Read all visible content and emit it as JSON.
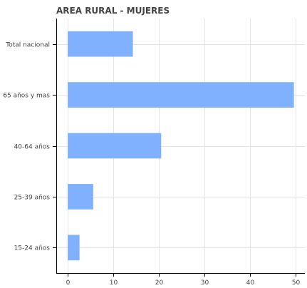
{
  "chart_data": {
    "type": "bar",
    "orientation": "horizontal",
    "title": "AREA RURAL - MUJERES",
    "xlabel": "",
    "ylabel": "",
    "categories": [
      "Total nacional",
      "65 años y mas",
      "40-64 años",
      "25-39 años",
      "15-24 años"
    ],
    "values": [
      14.3,
      49.6,
      20.5,
      5.6,
      2.6
    ],
    "xlim": [
      -2.5,
      52
    ],
    "xticks": [
      0,
      10,
      20,
      30,
      40,
      50
    ],
    "grid": true,
    "legend": "none",
    "bar_color": "#80b1ff"
  }
}
